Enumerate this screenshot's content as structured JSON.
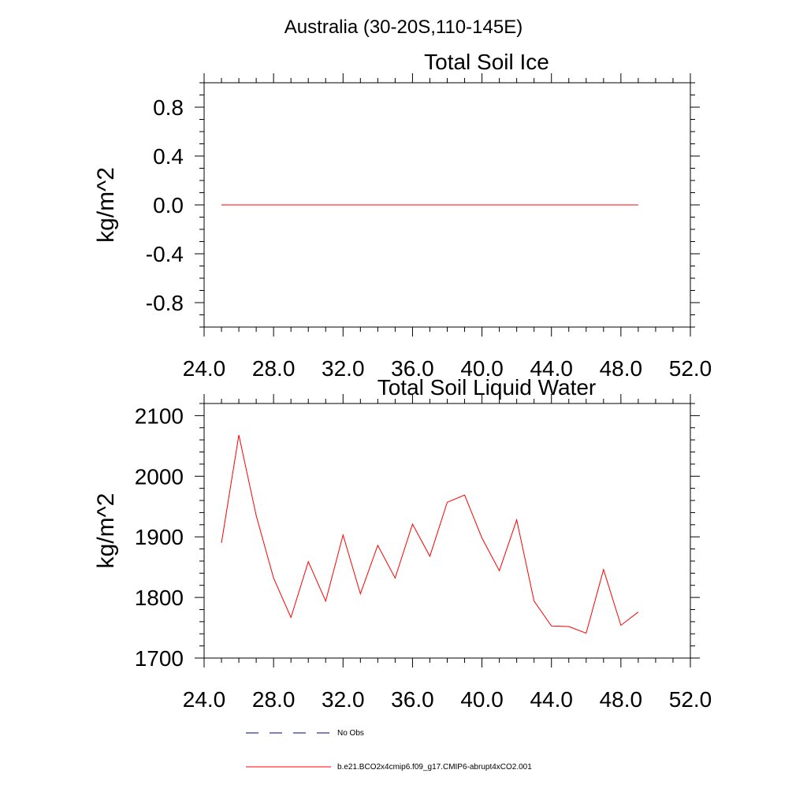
{
  "page_title": "Australia (30-20S,110-145E)",
  "colors": {
    "model_line": "#ff0000",
    "obs_line": "#000080",
    "axis": "#000000"
  },
  "chart_data": [
    {
      "type": "line",
      "title": "Total Soil Ice",
      "ylabel": "kg/m^2",
      "xlabel": "",
      "xlim": [
        24,
        52
      ],
      "ylim": [
        -1,
        1
      ],
      "x_ticks": [
        24,
        28,
        32,
        36,
        40,
        44,
        48,
        52
      ],
      "x_tick_labels": [
        "24.0",
        "28.0",
        "32.0",
        "36.0",
        "40.0",
        "44.0",
        "48.0",
        "52.0"
      ],
      "y_ticks": [
        -0.8,
        -0.4,
        0.0,
        0.4,
        0.8
      ],
      "y_tick_labels": [
        "-0.8",
        "-0.4",
        "0.0",
        "0.4",
        "0.8"
      ],
      "grid": false,
      "x": [
        25,
        26,
        27,
        28,
        29,
        30,
        31,
        32,
        33,
        34,
        35,
        36,
        37,
        38,
        39,
        40,
        41,
        42,
        43,
        44,
        45,
        46,
        47,
        48,
        49
      ],
      "series": [
        {
          "name": "b.e21.BCO2x4cmip6.f09_g17.CMIP6-abrupt4xCO2.001",
          "values": [
            0,
            0,
            0,
            0,
            0,
            0,
            0,
            0,
            0,
            0,
            0,
            0,
            0,
            0,
            0,
            0,
            0,
            0,
            0,
            0,
            0,
            0,
            0,
            0,
            0
          ]
        }
      ]
    },
    {
      "type": "line",
      "title": "Total Soil Liquid Water",
      "ylabel": "kg/m^2",
      "xlabel": "",
      "xlim": [
        24,
        52
      ],
      "ylim": [
        1700,
        2120
      ],
      "x_ticks": [
        24,
        28,
        32,
        36,
        40,
        44,
        48,
        52
      ],
      "x_tick_labels": [
        "24.0",
        "28.0",
        "32.0",
        "36.0",
        "40.0",
        "44.0",
        "48.0",
        "52.0"
      ],
      "y_ticks": [
        1700,
        1800,
        1900,
        2000,
        2100
      ],
      "y_tick_labels": [
        "1700",
        "1800",
        "1900",
        "2000",
        "2100"
      ],
      "grid": false,
      "x": [
        25,
        26,
        27,
        28,
        29,
        30,
        31,
        32,
        33,
        34,
        35,
        36,
        37,
        38,
        39,
        40,
        41,
        42,
        43,
        44,
        45,
        46,
        47,
        48,
        49
      ],
      "series": [
        {
          "name": "b.e21.BCO2x4cmip6.f09_g17.CMIP6-abrupt4xCO2.001",
          "values": [
            1890,
            2068,
            1935,
            1832,
            1767,
            1859,
            1794,
            1903,
            1806,
            1886,
            1832,
            1921,
            1868,
            1957,
            1969,
            1898,
            1844,
            1928,
            1794,
            1753,
            1752,
            1741,
            1846,
            1754,
            1776
          ]
        }
      ]
    }
  ],
  "legend": {
    "placement": "bottom",
    "items": [
      {
        "label": "No Obs",
        "style": "dashed"
      },
      {
        "label": "b.e21.BCO2x4cmip6.f09_g17.CMIP6-abrupt4xCO2.001",
        "style": "solid"
      }
    ]
  }
}
